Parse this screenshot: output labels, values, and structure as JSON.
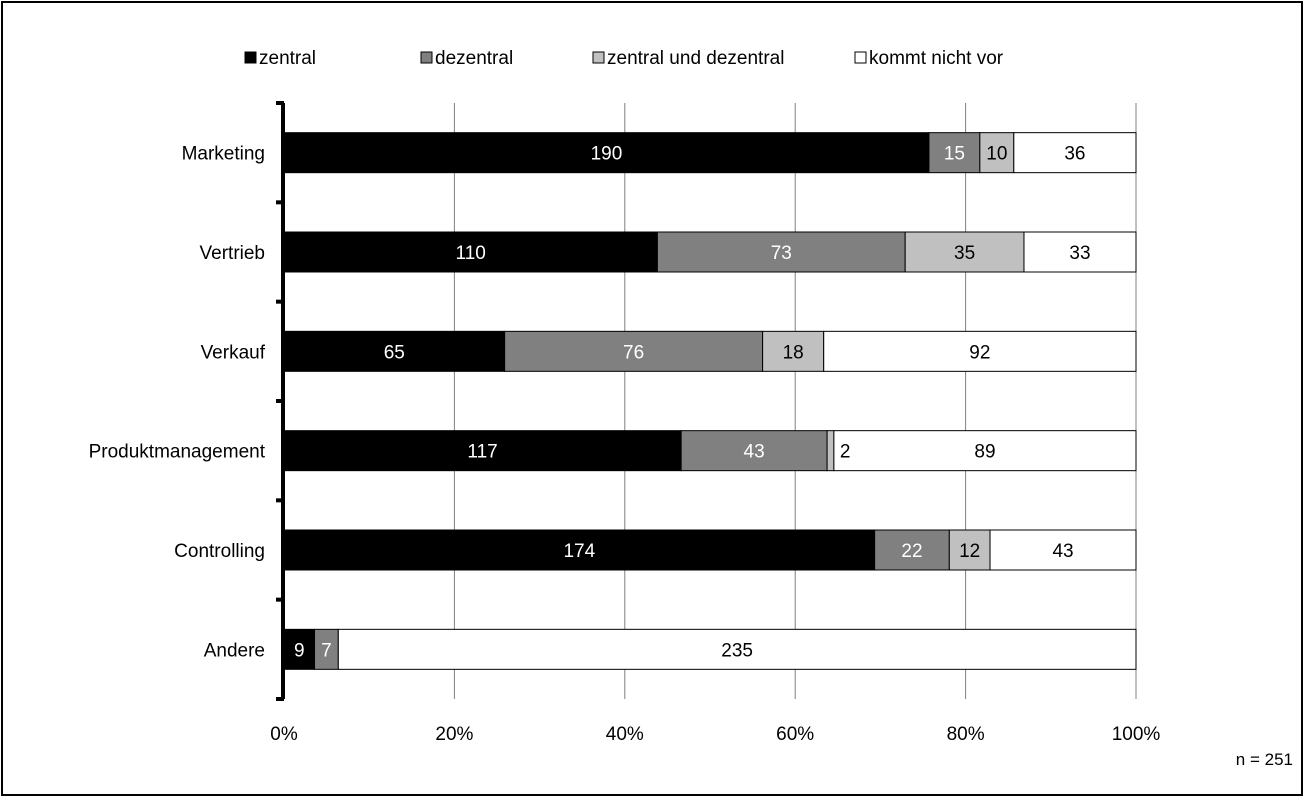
{
  "chart_data": {
    "type": "bar",
    "orientation": "horizontal",
    "stacked": "percent",
    "categories": [
      "Marketing",
      "Vertrieb",
      "Verkauf",
      "Produktmanagement",
      "Controlling",
      "Andere"
    ],
    "series": [
      {
        "name": "zentral",
        "color": "#000000",
        "label_color": "#ffffff",
        "values": [
          190,
          110,
          65,
          117,
          174,
          9
        ]
      },
      {
        "name": "dezentral",
        "color": "#808080",
        "label_color": "#ffffff",
        "values": [
          15,
          73,
          76,
          43,
          22,
          7
        ]
      },
      {
        "name": "zentral und dezentral",
        "color": "#c0c0c0",
        "label_color": "#000000",
        "values": [
          10,
          35,
          18,
          2,
          12,
          0
        ]
      },
      {
        "name": "kommt nicht vor",
        "color": "#ffffff",
        "label_color": "#000000",
        "values": [
          36,
          33,
          92,
          89,
          43,
          235
        ]
      }
    ],
    "xlim": [
      0,
      100
    ],
    "x_unit": "%",
    "x_ticks": [
      "0%",
      "20%",
      "40%",
      "60%",
      "80%",
      "100%"
    ],
    "grid": "vertical",
    "legend_position": "top",
    "note": "n = 251"
  }
}
